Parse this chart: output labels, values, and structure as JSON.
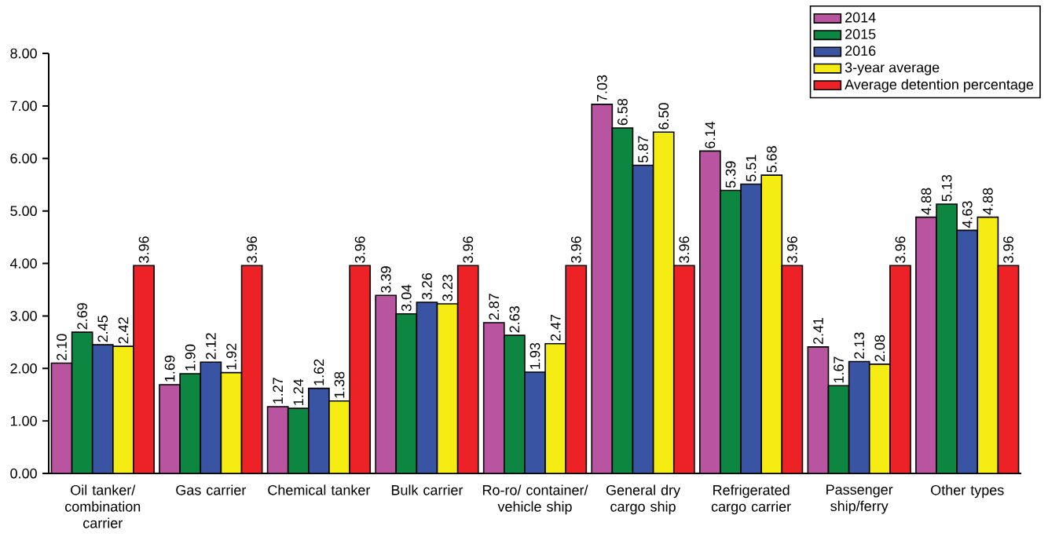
{
  "chart_data": {
    "type": "bar",
    "categories": [
      "Oil tanker/ combination carrier",
      "Gas carrier",
      "Chemical tanker",
      "Bulk carrier",
      "Ro-ro/ container/ vehicle ship",
      "General dry cargo ship",
      "Refrigerated cargo carrier",
      "Passenger ship/ferry",
      "Other types"
    ],
    "series": [
      {
        "name": "2014",
        "color": "#b955a0",
        "values": [
          2.1,
          1.69,
          1.27,
          3.39,
          2.87,
          7.03,
          6.14,
          2.41,
          4.88
        ],
        "value_labels": [
          "2.10",
          "1.69",
          "1.27",
          "3.39",
          "2.87",
          "7.03",
          "6.14",
          "2.41",
          "4.88"
        ]
      },
      {
        "name": "2015",
        "color": "#0c8640",
        "values": [
          2.69,
          1.9,
          1.24,
          3.04,
          2.63,
          6.58,
          5.39,
          1.67,
          5.13
        ],
        "value_labels": [
          "2.69",
          "1.90",
          "1.24",
          "3.04",
          "2.63",
          "6.58",
          "5.39",
          "1.67",
          "5.13"
        ]
      },
      {
        "name": "2016",
        "color": "#3a54a4",
        "values": [
          2.45,
          2.12,
          1.62,
          3.26,
          1.93,
          5.87,
          5.51,
          2.13,
          4.63
        ],
        "value_labels": [
          "2.45",
          "2.12",
          "1.62",
          "3.26",
          "1.93",
          "5.87",
          "5.51",
          "2.13",
          "4.63"
        ]
      },
      {
        "name": "3-year average",
        "color": "#f5ec14",
        "values": [
          2.42,
          1.92,
          1.38,
          3.23,
          2.47,
          6.5,
          5.68,
          2.08,
          4.88
        ],
        "value_labels": [
          "2.42",
          "1.92",
          "1.38",
          "3.23",
          "2.47",
          "6.50",
          "5.68",
          "2.08",
          "4.88"
        ]
      },
      {
        "name": "Average detention percentage",
        "color": "#ec2227",
        "values": [
          3.96,
          3.96,
          3.96,
          3.96,
          3.96,
          3.96,
          3.96,
          3.96,
          3.96
        ],
        "value_labels": [
          "3.96",
          "3.96",
          "3.96",
          "3.96",
          "3.96",
          "3.96",
          "3.96",
          "3.96",
          "3.96"
        ]
      }
    ],
    "ylim": [
      0,
      8
    ],
    "yticks": [
      {
        "value": 0,
        "label": "0.00"
      },
      {
        "value": 1,
        "label": "1.00"
      },
      {
        "value": 2,
        "label": "2.00"
      },
      {
        "value": 3,
        "label": "3.00"
      },
      {
        "value": 4,
        "label": "4.00"
      },
      {
        "value": 5,
        "label": "5.00"
      },
      {
        "value": 6,
        "label": "6.00"
      },
      {
        "value": 7,
        "label": "7.00"
      },
      {
        "value": 8,
        "label": "8.00"
      }
    ],
    "legend": "top right"
  }
}
